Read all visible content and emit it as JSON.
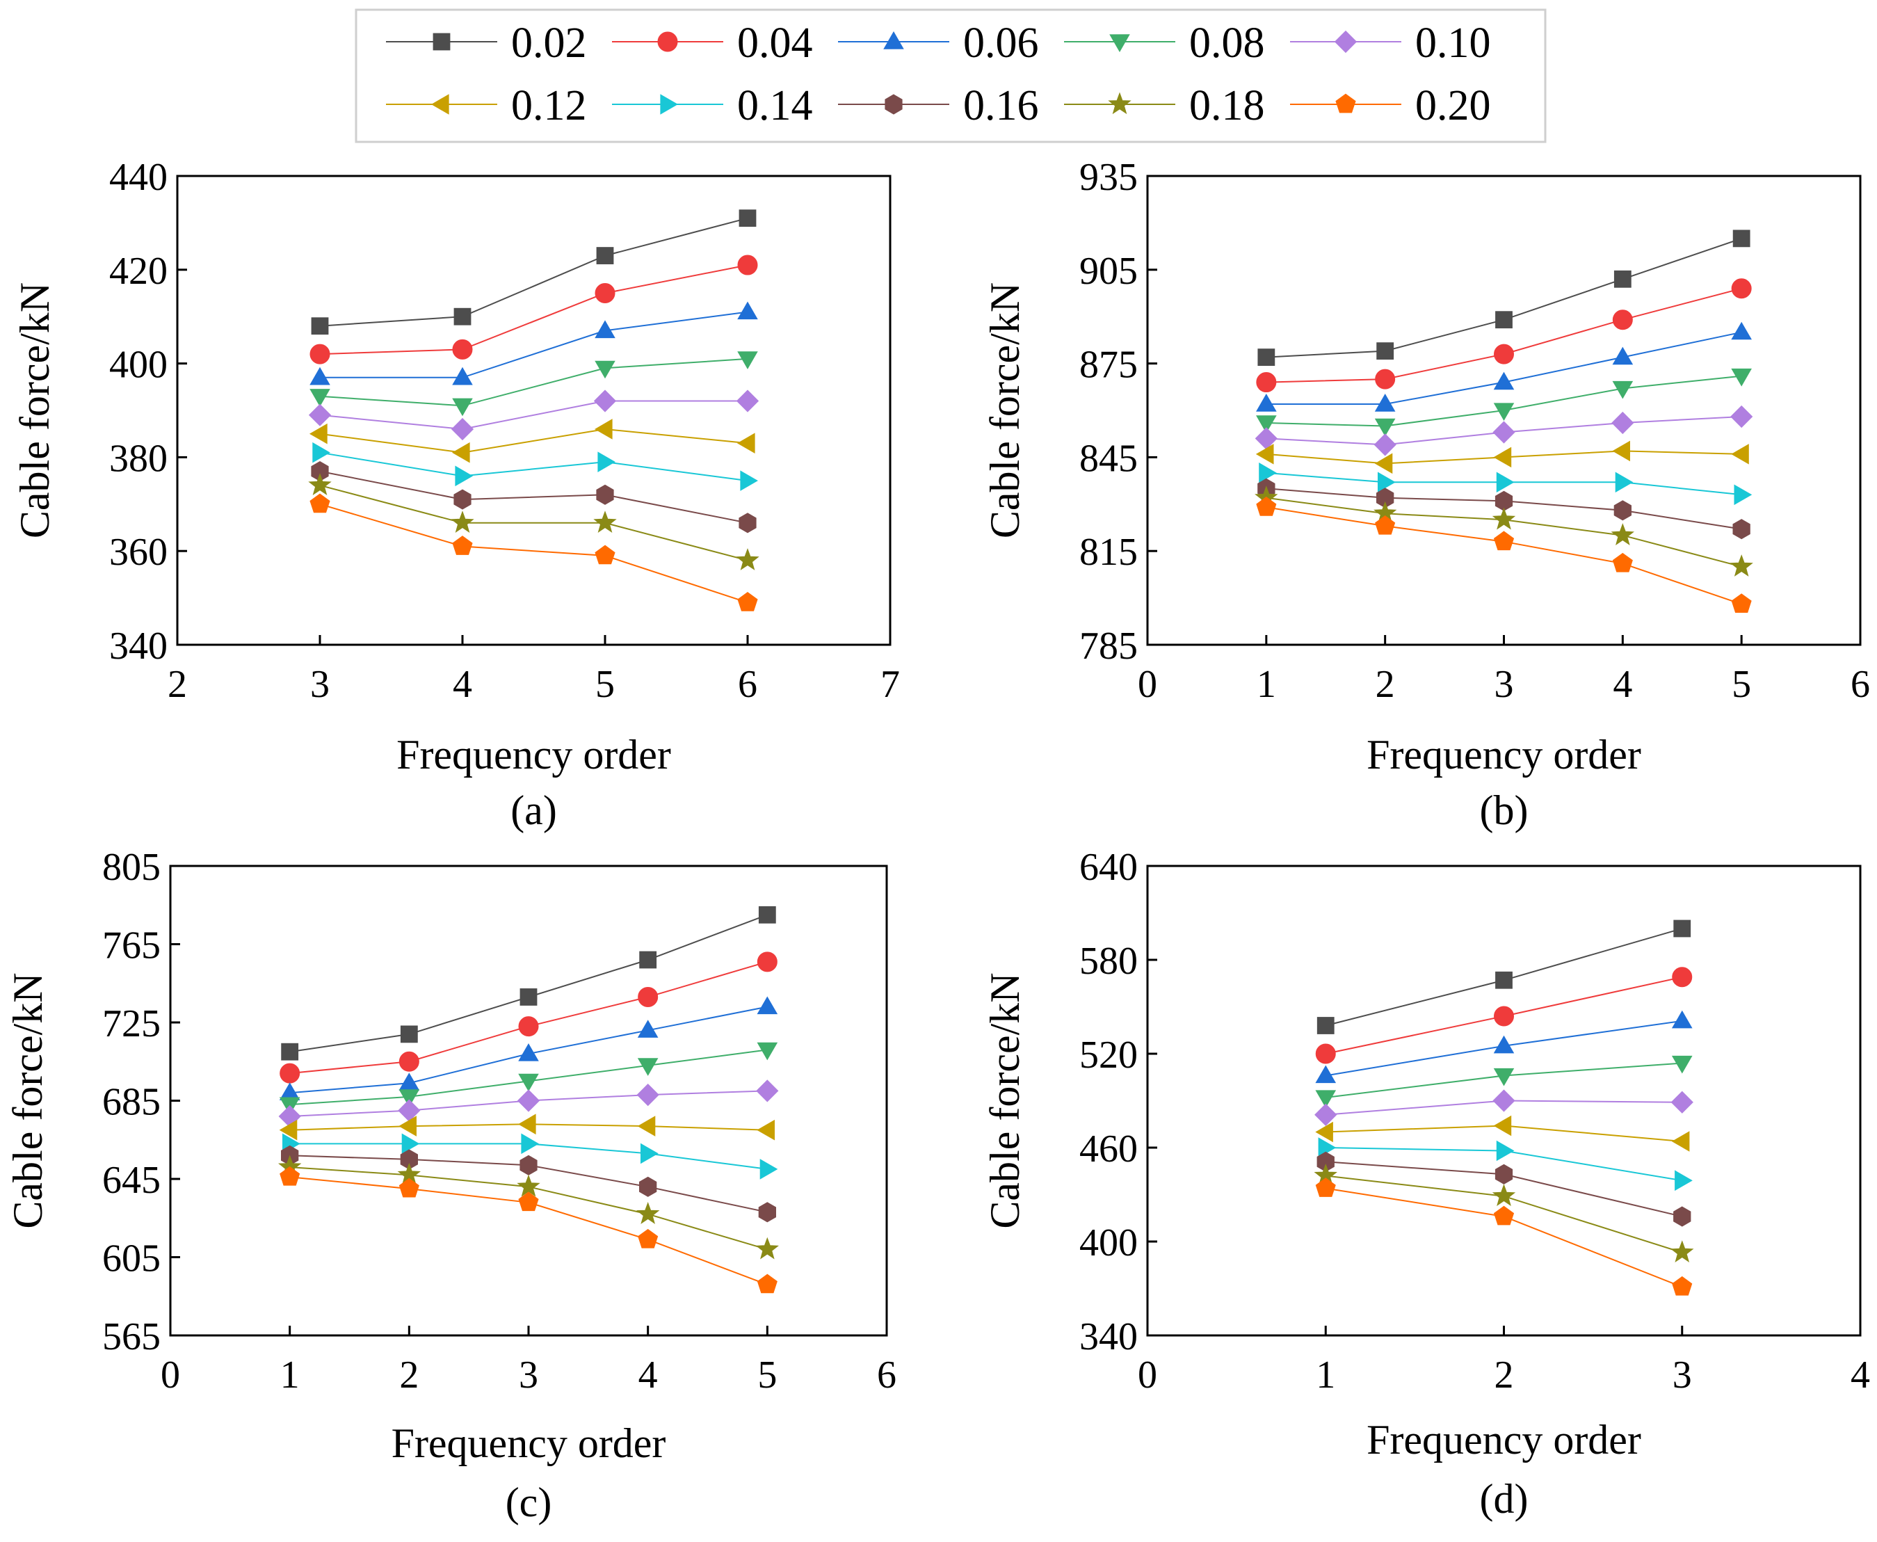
{
  "legend": {
    "entries": [
      {
        "label": "0.02",
        "color": "#4d4d4d",
        "marker": "square"
      },
      {
        "label": "0.04",
        "color": "#ef3b3b",
        "marker": "circle"
      },
      {
        "label": "0.06",
        "color": "#1f6fd6",
        "marker": "triangle-up"
      },
      {
        "label": "0.08",
        "color": "#3fae6a",
        "marker": "triangle-down"
      },
      {
        "label": "0.10",
        "color": "#b07fe0",
        "marker": "diamond"
      },
      {
        "label": "0.12",
        "color": "#c9a000",
        "marker": "triangle-left"
      },
      {
        "label": "0.14",
        "color": "#19c7d6",
        "marker": "triangle-right"
      },
      {
        "label": "0.16",
        "color": "#7a4a4a",
        "marker": "hexagon"
      },
      {
        "label": "0.18",
        "color": "#8a8a16",
        "marker": "star"
      },
      {
        "label": "0.20",
        "color": "#ff6a00",
        "marker": "pentagon"
      }
    ]
  },
  "chart_data": [
    {
      "type": "line",
      "panel_label": "(a)",
      "xlabel": "Frequency order",
      "ylabel": "Cable force/kN",
      "xlim": [
        2,
        7
      ],
      "ylim": [
        340,
        440
      ],
      "xticks": [
        2,
        3,
        4,
        5,
        6,
        7
      ],
      "yticks": [
        340,
        360,
        380,
        400,
        420,
        440
      ],
      "x": [
        3,
        4,
        5,
        6
      ],
      "series": [
        {
          "name": "0.02",
          "values": [
            408,
            410,
            423,
            431
          ]
        },
        {
          "name": "0.04",
          "values": [
            402,
            403,
            415,
            421
          ]
        },
        {
          "name": "0.06",
          "values": [
            397,
            397,
            407,
            411
          ]
        },
        {
          "name": "0.08",
          "values": [
            393,
            391,
            399,
            401
          ]
        },
        {
          "name": "0.10",
          "values": [
            389,
            386,
            392,
            392
          ]
        },
        {
          "name": "0.12",
          "values": [
            385,
            381,
            386,
            383
          ]
        },
        {
          "name": "0.14",
          "values": [
            381,
            376,
            379,
            375
          ]
        },
        {
          "name": "0.16",
          "values": [
            377,
            371,
            372,
            366
          ]
        },
        {
          "name": "0.18",
          "values": [
            374,
            366,
            366,
            358
          ]
        },
        {
          "name": "0.20",
          "values": [
            370,
            361,
            359,
            349
          ]
        }
      ]
    },
    {
      "type": "line",
      "panel_label": "(b)",
      "xlabel": "Frequency order",
      "ylabel": "Cable force/kN",
      "xlim": [
        0,
        6
      ],
      "ylim": [
        785,
        935
      ],
      "xticks": [
        0,
        1,
        2,
        3,
        4,
        5,
        6
      ],
      "yticks": [
        785,
        815,
        845,
        875,
        905,
        935
      ],
      "x": [
        1,
        2,
        3,
        4,
        5
      ],
      "series": [
        {
          "name": "0.02",
          "values": [
            877,
            879,
            889,
            902,
            915
          ]
        },
        {
          "name": "0.04",
          "values": [
            869,
            870,
            878,
            889,
            899
          ]
        },
        {
          "name": "0.06",
          "values": [
            862,
            862,
            869,
            877,
            885
          ]
        },
        {
          "name": "0.08",
          "values": [
            856,
            855,
            860,
            867,
            871
          ]
        },
        {
          "name": "0.10",
          "values": [
            851,
            849,
            853,
            856,
            858
          ]
        },
        {
          "name": "0.12",
          "values": [
            846,
            843,
            845,
            847,
            846
          ]
        },
        {
          "name": "0.14",
          "values": [
            840,
            837,
            837,
            837,
            833
          ]
        },
        {
          "name": "0.16",
          "values": [
            835,
            832,
            831,
            828,
            822
          ]
        },
        {
          "name": "0.18",
          "values": [
            832,
            827,
            825,
            820,
            810
          ]
        },
        {
          "name": "0.20",
          "values": [
            829,
            823,
            818,
            811,
            798
          ]
        }
      ]
    },
    {
      "type": "line",
      "panel_label": "(c)",
      "xlabel": "Frequency order",
      "ylabel": "Cable force/kN",
      "xlim": [
        0,
        6
      ],
      "ylim": [
        565,
        805
      ],
      "xticks": [
        0,
        1,
        2,
        3,
        4,
        5,
        6
      ],
      "yticks": [
        565,
        605,
        645,
        685,
        725,
        765,
        805
      ],
      "x": [
        1,
        2,
        3,
        4,
        5
      ],
      "series": [
        {
          "name": "0.02",
          "values": [
            710,
            719,
            738,
            757,
            780
          ]
        },
        {
          "name": "0.04",
          "values": [
            699,
            705,
            723,
            738,
            756
          ]
        },
        {
          "name": "0.06",
          "values": [
            689,
            694,
            709,
            721,
            733
          ]
        },
        {
          "name": "0.08",
          "values": [
            683,
            687,
            695,
            703,
            711
          ]
        },
        {
          "name": "0.10",
          "values": [
            677,
            680,
            685,
            688,
            690
          ]
        },
        {
          "name": "0.12",
          "values": [
            670,
            672,
            673,
            672,
            670
          ]
        },
        {
          "name": "0.14",
          "values": [
            663,
            663,
            663,
            658,
            650
          ]
        },
        {
          "name": "0.16",
          "values": [
            657,
            655,
            652,
            641,
            628
          ]
        },
        {
          "name": "0.18",
          "values": [
            651,
            647,
            641,
            627,
            609
          ]
        },
        {
          "name": "0.20",
          "values": [
            646,
            640,
            633,
            614,
            591
          ]
        }
      ]
    },
    {
      "type": "line",
      "panel_label": "(d)",
      "xlabel": "Frequency order",
      "ylabel": "Cable force/kN",
      "xlim": [
        0,
        4
      ],
      "ylim": [
        340,
        640
      ],
      "xticks": [
        0,
        1,
        2,
        3,
        4
      ],
      "yticks": [
        340,
        400,
        460,
        520,
        580,
        640
      ],
      "x": [
        1,
        2,
        3
      ],
      "series": [
        {
          "name": "0.02",
          "values": [
            538,
            567,
            600
          ]
        },
        {
          "name": "0.04",
          "values": [
            520,
            544,
            569
          ]
        },
        {
          "name": "0.06",
          "values": [
            506,
            525,
            541
          ]
        },
        {
          "name": "0.08",
          "values": [
            492,
            506,
            514
          ]
        },
        {
          "name": "0.10",
          "values": [
            481,
            490,
            489
          ]
        },
        {
          "name": "0.12",
          "values": [
            470,
            474,
            464
          ]
        },
        {
          "name": "0.14",
          "values": [
            460,
            458,
            439
          ]
        },
        {
          "name": "0.16",
          "values": [
            451,
            443,
            416
          ]
        },
        {
          "name": "0.18",
          "values": [
            442,
            429,
            393
          ]
        },
        {
          "name": "0.20",
          "values": [
            434,
            416,
            371
          ]
        }
      ]
    }
  ]
}
